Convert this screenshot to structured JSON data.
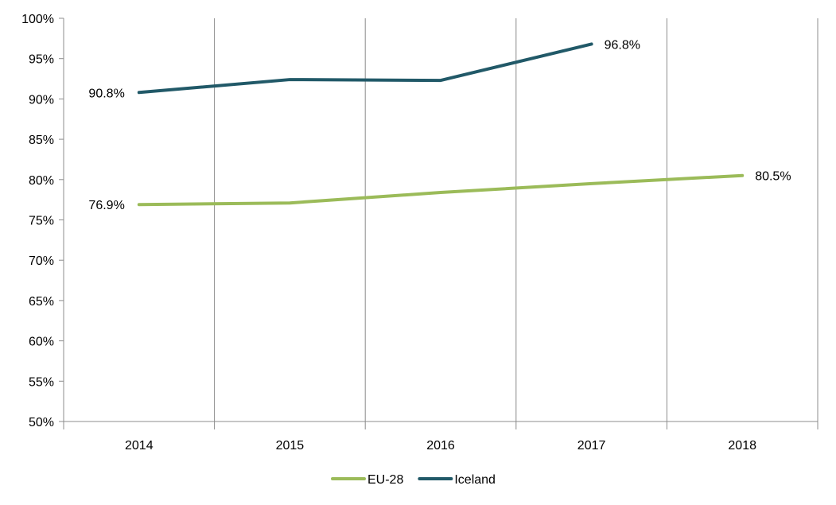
{
  "chart_data": {
    "type": "line",
    "title": "",
    "xlabel": "",
    "ylabel": "",
    "categories": [
      "2014",
      "2015",
      "2016",
      "2017",
      "2018"
    ],
    "ylim": [
      50,
      100
    ],
    "yticks": [
      50,
      55,
      60,
      65,
      70,
      75,
      80,
      85,
      90,
      95,
      100
    ],
    "ytick_labels": [
      "50%",
      "55%",
      "60%",
      "65%",
      "70%",
      "75%",
      "80%",
      "85%",
      "90%",
      "95%",
      "100%"
    ],
    "grid": "vertical category separators",
    "legend_position": "bottom",
    "series": [
      {
        "name": "EU-28",
        "color": "#9BBB59",
        "values": [
          76.9,
          77.1,
          78.4,
          79.5,
          80.5
        ],
        "data_labels": [
          {
            "index": 0,
            "text": "76.9%",
            "side": "left"
          },
          {
            "index": 4,
            "text": "80.5%",
            "side": "right"
          }
        ]
      },
      {
        "name": "Iceland",
        "color": "#215968",
        "values": [
          90.8,
          92.4,
          92.3,
          96.8,
          null
        ],
        "data_labels": [
          {
            "index": 0,
            "text": "90.8%",
            "side": "left"
          },
          {
            "index": 3,
            "text": "96.8%",
            "side": "right"
          }
        ]
      }
    ]
  }
}
